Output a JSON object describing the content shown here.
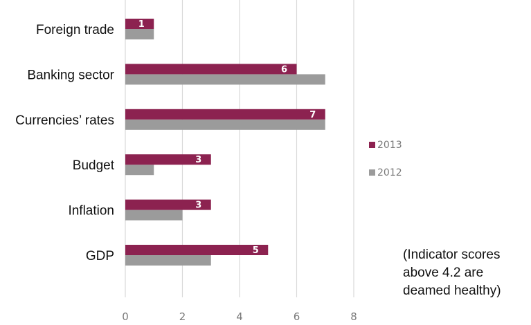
{
  "chart_data": {
    "type": "bar",
    "orientation": "horizontal",
    "categories": [
      "Foreign trade",
      "Banking sector",
      "Currencies’ rates",
      "Budget",
      "Inflation",
      "GDP"
    ],
    "series": [
      {
        "name": "2013",
        "values": [
          1,
          6,
          7,
          3,
          3,
          5
        ],
        "color": "#8c2250",
        "labeled": true
      },
      {
        "name": "2012",
        "values": [
          1,
          7,
          7,
          1,
          2,
          3
        ],
        "color": "#9b9b9b",
        "labeled": false
      }
    ],
    "x_ticks": [
      "0",
      "2",
      "4",
      "6",
      "8"
    ],
    "xlim": [
      0,
      8
    ],
    "grid": true,
    "legend": "right"
  },
  "note": "(Indicator scores above 4.2 are deamed healthy)"
}
